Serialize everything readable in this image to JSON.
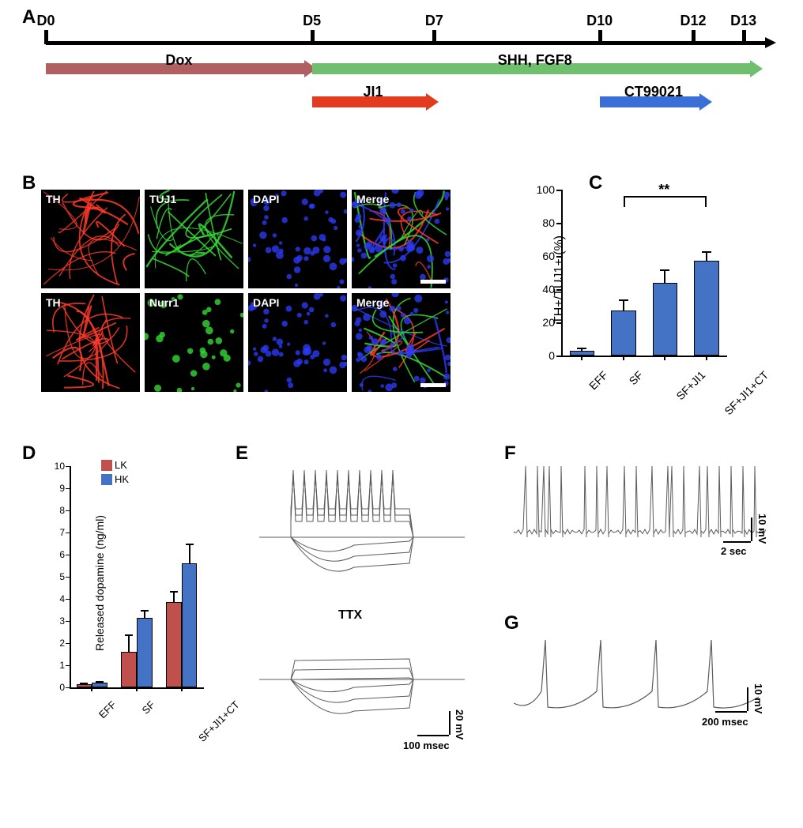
{
  "panels": {
    "A": "A",
    "B": "B",
    "C": "C",
    "D": "D",
    "E": "E",
    "F": "F",
    "G": "G"
  },
  "timeline": {
    "days": [
      "D0",
      "D5",
      "D7",
      "D10",
      "D12",
      "D13"
    ],
    "day_positions_pct": [
      0,
      37,
      54,
      77,
      90,
      97
    ],
    "axis_color": "#000000",
    "bars": [
      {
        "label": "Dox",
        "color": "#b06060",
        "start_pct": 0,
        "end_pct": 37,
        "y": 70,
        "text_y": 60
      },
      {
        "label": "SHH, FGF8",
        "color": "#6fbf6f",
        "start_pct": 37,
        "end_pct": 99,
        "y": 70,
        "text_y": 60
      },
      {
        "label": "JI1",
        "color": "#e23b1f",
        "start_pct": 37,
        "end_pct": 54,
        "y": 112,
        "text_y": 100
      },
      {
        "label": "CT99021",
        "color": "#3a6fd8",
        "start_pct": 77,
        "end_pct": 92,
        "y": 112,
        "text_y": 100
      }
    ]
  },
  "panelB": {
    "cells": [
      [
        {
          "label": "TH",
          "bg": "#000000",
          "fg": "#ff3a2a",
          "pattern": "fibers"
        },
        {
          "label": "TUJ1",
          "bg": "#000000",
          "fg": "#36d836",
          "pattern": "mesh"
        },
        {
          "label": "DAPI",
          "bg": "#000000",
          "fg": "#2a3af0",
          "pattern": "spots"
        },
        {
          "label": "Merge",
          "bg": "#000000",
          "fg": "#ffffff",
          "pattern": "merge"
        }
      ],
      [
        {
          "label": "TH",
          "bg": "#000000",
          "fg": "#ff3a2a",
          "pattern": "fibers"
        },
        {
          "label": "Nurr1",
          "bg": "#000000",
          "fg": "#36d836",
          "pattern": "dots"
        },
        {
          "label": "DAPI",
          "bg": "#000000",
          "fg": "#2a3af0",
          "pattern": "spots"
        },
        {
          "label": "Merge",
          "bg": "#000000",
          "fg": "#ffffff",
          "pattern": "merge"
        }
      ]
    ]
  },
  "panelC": {
    "type": "bar",
    "ytitle": "TH+/TUJ1+ (%)",
    "ylim": [
      0,
      100
    ],
    "ytick_step": 20,
    "categories": [
      "EFF",
      "SF",
      "SF+JI1",
      "SF+JI1+CT"
    ],
    "values": [
      3,
      27,
      44,
      57
    ],
    "errors": [
      2,
      7,
      8,
      6
    ],
    "bar_color": "#4472c4",
    "bar_border": "#000000",
    "background": "#ffffff",
    "axis_color": "#000000",
    "bar_width": 0.6,
    "sig": {
      "label": "**",
      "from": 1,
      "to": 3
    }
  },
  "panelD": {
    "type": "grouped-bar",
    "ytitle": "Released dopamine (ng/ml)",
    "ylim": [
      0,
      10
    ],
    "ytick_step": 1,
    "categories": [
      "EFF",
      "SF",
      "SF+JI1+CT"
    ],
    "series": [
      {
        "name": "LK",
        "color": "#c0504d",
        "values": [
          0.15,
          1.6,
          3.85
        ],
        "errors": [
          0.05,
          0.8,
          0.5
        ]
      },
      {
        "name": "HK",
        "color": "#4472c4",
        "values": [
          0.22,
          3.15,
          5.6
        ],
        "errors": [
          0.05,
          0.35,
          0.9
        ]
      }
    ],
    "axis_color": "#000000",
    "bar_width": 0.35
  },
  "panelE": {
    "ttx_label": "TTX",
    "scale_v": "20 mV",
    "scale_h": "100 msec",
    "trace_color": "#5c5c5c"
  },
  "panelF": {
    "scale_v": "10 mV",
    "scale_h": "2 sec",
    "trace_color": "#5c5c5c"
  },
  "panelG": {
    "scale_v": "10 mV",
    "scale_h": "200 msec",
    "trace_color": "#5c5c5c"
  },
  "colors": {
    "paper_bg": "#ffffff",
    "text": "#000000"
  }
}
